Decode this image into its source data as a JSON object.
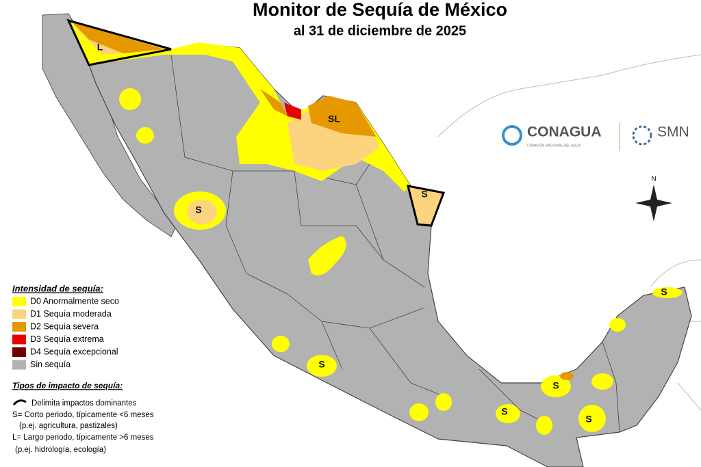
{
  "header": {
    "title": "Monitor de Sequía de México",
    "subtitle": "al 31 de diciembre de 2025"
  },
  "logos": {
    "conagua": "CONAGUA",
    "conagua_sub": "COMISIÓN NACIONAL DEL AGUA",
    "smn": "SMN"
  },
  "compass": "N",
  "legend": {
    "title": "Intensidad de sequía:",
    "items": [
      {
        "label": "D0 Anormalmente seco",
        "color": "#ffff00"
      },
      {
        "label": "D1 Sequía moderada",
        "color": "#fcd37f"
      },
      {
        "label": "D2 Sequía severa",
        "color": "#e69800"
      },
      {
        "label": "D3 Sequía extrema",
        "color": "#e60000"
      },
      {
        "label": "D4 Sequía excepcional",
        "color": "#730000"
      },
      {
        "label": "Sin sequía",
        "color": "#b2b2b2"
      }
    ]
  },
  "impacts": {
    "title": "Tipos de impacto de sequía:",
    "lines": [
      "Delimita impactos dominantes",
      "S= Corto periodo, típicamente <6 meses",
      "(p.ej. agricultura, pastizales)",
      "L= Largo periodo, típicamente >6 meses",
      "(p.ej. hidrología, ecología)"
    ]
  },
  "map_labels": [
    {
      "text": "L"
    },
    {
      "text": "SL"
    },
    {
      "text": "S"
    },
    {
      "text": "S"
    },
    {
      "text": "S"
    },
    {
      "text": "S"
    },
    {
      "text": "S"
    },
    {
      "text": "S"
    },
    {
      "text": "S"
    }
  ]
}
